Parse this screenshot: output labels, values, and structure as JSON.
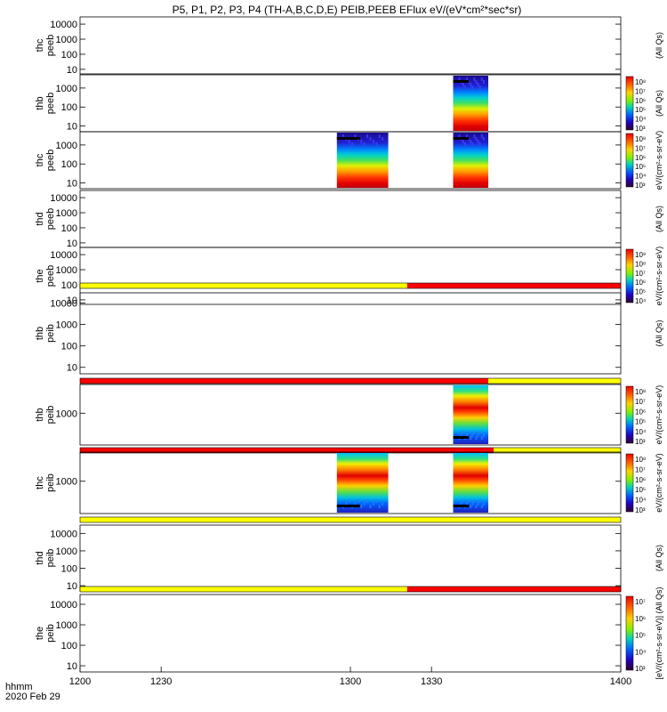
{
  "title": "P5, P1, P2, P3, P4 (TH-A,B,C,D,E) PEIB,PEEB EFlux eV/(eV*cm²*sec*sr)",
  "x_axis_label_top": "hhmm",
  "x_axis_label_date": "2020 Feb 29",
  "chart_data": {
    "type": "heatmap",
    "title": "P5, P1, P2, P3, P4 (TH-A,B,C,D,E) PEIB,PEEB EFlux eV/(eV*cm²*sec*sr)",
    "x_range": [
      1200,
      1400
    ],
    "x_ticks": [
      1200,
      1230,
      1300,
      1330,
      1400
    ],
    "x_tick_labels": [
      "1200",
      "1230",
      "1300",
      "1330",
      "1400"
    ],
    "x_label": "hhmm / 2020 Feb 29",
    "panels": [
      {
        "id": "thc-peeb-top",
        "ylabel": [
          "thc",
          "peeb"
        ],
        "yticks": [
          "10000",
          "1000",
          "100",
          "10"
        ],
        "ytick_values": [
          10000,
          1000,
          100,
          10
        ],
        "ymin": 5,
        "ymax": 30000,
        "blocks": [],
        "colorbar_label": "(All Qs)",
        "colorbar_ticks": []
      },
      {
        "id": "thb-peeb",
        "ylabel": [
          "thb",
          "peeb"
        ],
        "yticks": [
          "1000",
          "100",
          "10"
        ],
        "ytick_values": [
          1000,
          100,
          10
        ],
        "ymin": 5,
        "ymax": 5000,
        "blocks": [
          {
            "start": 1338,
            "end": 1351
          }
        ],
        "colorbar_label": "(All Qs)",
        "colorbar_ticks": [
          "10⁸",
          "10⁷",
          "10⁶",
          "10⁵",
          "10⁴",
          "10³"
        ]
      },
      {
        "id": "thc-peeb",
        "ylabel": [
          "thc",
          "peeb"
        ],
        "yticks": [
          "1000",
          "100",
          "10"
        ],
        "ytick_values": [
          1000,
          100,
          10
        ],
        "ymin": 5,
        "ymax": 5000,
        "blocks": [
          {
            "start": 1295,
            "end": 1314
          },
          {
            "start": 1338,
            "end": 1351
          }
        ],
        "colorbar_label": "eV/(cm²-s-sr-eV)",
        "colorbar_ticks": [
          "10⁸",
          "10⁷",
          "10⁶",
          "10⁵",
          "10⁴",
          "10³"
        ]
      },
      {
        "id": "thd-peeb",
        "ylabel": [
          "thd",
          "peeb"
        ],
        "yticks": [
          "10000",
          "1000",
          "100",
          "10"
        ],
        "ytick_values": [
          10000,
          1000,
          100,
          10
        ],
        "ymin": 5,
        "ymax": 30000,
        "blocks": [],
        "colorbar_label": "(All Qs)",
        "colorbar_ticks": []
      },
      {
        "id": "the-peeb",
        "ylabel": [
          "the",
          "peeb"
        ],
        "yticks": [
          "10000",
          "1000",
          "100",
          "10"
        ],
        "ytick_values": [
          10000,
          1000,
          100,
          10
        ],
        "ymin": 5,
        "ymax": 30000,
        "blocks": [],
        "colorbar_label": "eV/(cm²-s-sr-eV)",
        "colorbar_ticks": [
          "10⁹",
          "10⁸",
          "10⁷",
          "10⁶",
          "10⁵",
          "10⁴"
        ]
      },
      {
        "id": "thb-peib-mode",
        "type": "bar",
        "segments": [
          {
            "start": 1200,
            "end": 1321,
            "color": "#ffff00"
          },
          {
            "start": 1321,
            "end": 1400,
            "color": "#ff0000"
          }
        ]
      },
      {
        "id": "thb-peib-top",
        "ylabel": [
          "thb",
          "peib"
        ],
        "yticks": [
          "10000",
          "1000",
          "100",
          "10"
        ],
        "ytick_values": [
          10000,
          1000,
          100,
          10
        ],
        "ymin": 5,
        "ymax": 30000,
        "blocks": [],
        "colorbar_label": "(All Qs)",
        "colorbar_ticks": []
      },
      {
        "id": "thb-peib-bar",
        "type": "bar",
        "segments": [
          {
            "start": 1200,
            "end": 1351,
            "color": "#ff0000"
          },
          {
            "start": 1351,
            "end": 1400,
            "color": "#ffff00"
          }
        ]
      },
      {
        "id": "thb-peib",
        "ylabel": [
          "thb",
          "peib"
        ],
        "yticks": [
          "1000"
        ],
        "ytick_values": [
          1000
        ],
        "ymin": 100,
        "ymax": 8000,
        "blocks": [
          {
            "start": 1338,
            "end": 1351
          }
        ],
        "colorbar_label": "eV/(cm²-s-sr-eV)",
        "colorbar_ticks": [
          "10⁸",
          "10⁷",
          "10⁶",
          "10⁵",
          "10⁴",
          "10³"
        ]
      },
      {
        "id": "thc-peib-bar",
        "type": "bar",
        "segments": [
          {
            "start": 1200,
            "end": 1353,
            "color": "#ff0000"
          },
          {
            "start": 1353,
            "end": 1400,
            "color": "#ffff00"
          }
        ]
      },
      {
        "id": "thc-peib",
        "ylabel": [
          "thc",
          "peib"
        ],
        "yticks": [
          "1000"
        ],
        "ytick_values": [
          1000
        ],
        "ymin": 100,
        "ymax": 8000,
        "blocks": [
          {
            "start": 1295,
            "end": 1314
          },
          {
            "start": 1338,
            "end": 1351
          }
        ],
        "colorbar_label": "eV/(cm²-s-sr-eV)",
        "colorbar_ticks": [
          "10⁸",
          "10⁷",
          "10⁶",
          "10⁵",
          "10⁴",
          "10³"
        ]
      },
      {
        "id": "thd-peib-bar",
        "type": "bar",
        "segments": [
          {
            "start": 1200,
            "end": 1400,
            "color": "#ffff00"
          }
        ]
      },
      {
        "id": "thd-peib",
        "ylabel": [
          "thd",
          "peib"
        ],
        "yticks": [
          "10000",
          "1000",
          "100",
          "10"
        ],
        "ytick_values": [
          10000,
          1000,
          100,
          10
        ],
        "ymin": 5,
        "ymax": 30000,
        "blocks": [],
        "colorbar_label": "(All Qs)",
        "colorbar_ticks": []
      },
      {
        "id": "the-peib-bar",
        "type": "bar",
        "segments": [
          {
            "start": 1200,
            "end": 1321,
            "color": "#ffff00"
          },
          {
            "start": 1321,
            "end": 1400,
            "color": "#ff0000"
          }
        ]
      },
      {
        "id": "the-peib",
        "ylabel": [
          "the",
          "peib"
        ],
        "yticks": [
          "10000",
          "1000",
          "100",
          "10"
        ],
        "ytick_values": [
          10000,
          1000,
          100,
          10
        ],
        "ymin": 5,
        "ymax": 30000,
        "blocks": [],
        "colorbar_label": "[eV/(cm²-s-sr-eV)] (All Qs)",
        "colorbar_ticks": [
          "10⁷",
          "10⁶",
          "10⁵",
          "10⁴",
          "10³"
        ]
      }
    ]
  }
}
